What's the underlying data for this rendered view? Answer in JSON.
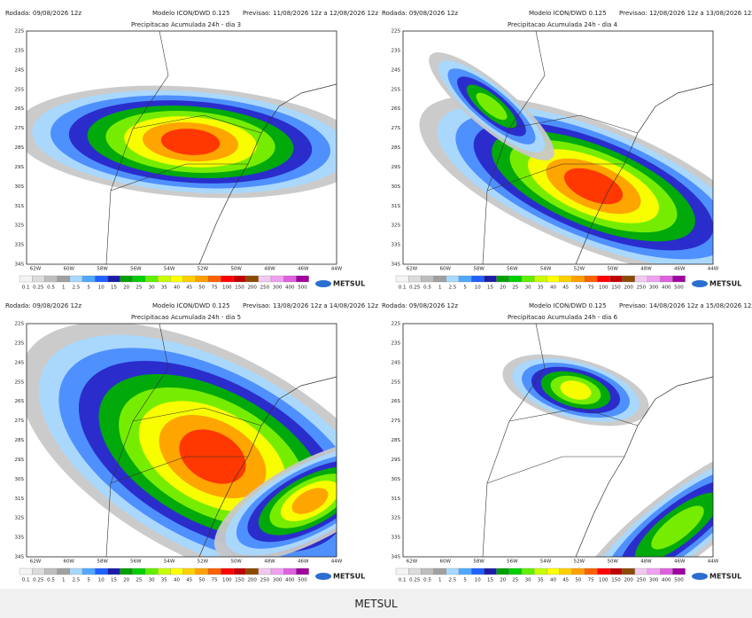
{
  "panels": [
    {
      "rodada": "Rodada: 09/08/2026 12z",
      "modelo": "Modelo ICON/DWD 0.125",
      "previsao": "Previsao: 11/08/2026 12z a 12/08/2026 12z",
      "subtitle": "Precipitacao Acumulada 24h - dia 3"
    },
    {
      "rodada": "Rodada: 09/08/2026 12z",
      "modelo": "Modelo ICON/DWD 0.125",
      "previsao": "Previsao: 12/08/2026 12z a 13/08/2026 12z",
      "subtitle": "Precipitacao Acumulada 24h - dia 4"
    },
    {
      "rodada": "Rodada: 09/08/2026 12z",
      "modelo": "Modelo ICON/DWD 0.125",
      "previsao": "Previsao: 13/08/2026 12z a 14/08/2026 12z",
      "subtitle": "Precipitacao Acumulada 24h - dia 5"
    },
    {
      "rodada": "Rodada: 09/08/2026 12z",
      "modelo": "Modelo ICON/DWD 0.125",
      "previsao": "Previsao: 14/08/2026 12z a 15/08/2026 12z",
      "subtitle": "Precipitacao Acumulada 24h - dia 6"
    }
  ],
  "axes": {
    "lat_labels": [
      "22S",
      "23S",
      "24S",
      "25S",
      "26S",
      "27S",
      "28S",
      "29S",
      "30S",
      "31S",
      "32S",
      "33S",
      "34S"
    ],
    "lon_labels": [
      "62W",
      "60W",
      "58W",
      "56W",
      "54W",
      "52W",
      "50W",
      "48W",
      "46W",
      "44W"
    ]
  },
  "colorbar": {
    "labels": [
      "0.1",
      "0.25",
      "0.5",
      "1",
      "2.5",
      "5",
      "10",
      "15",
      "20",
      "25",
      "30",
      "35",
      "40",
      "45",
      "50",
      "75",
      "100",
      "150",
      "200",
      "250",
      "300",
      "400",
      "500"
    ],
    "colors": [
      "#f4f4f4",
      "#dcdcdc",
      "#bebebe",
      "#a0a0a0",
      "#a8d8ff",
      "#50a8ff",
      "#2060ff",
      "#1c1ca8",
      "#00a000",
      "#00d000",
      "#60f000",
      "#c8ff00",
      "#ffff00",
      "#ffd000",
      "#ffa000",
      "#ff6000",
      "#ff0000",
      "#c00000",
      "#8c4a00",
      "#f0c8f0",
      "#f0a0f0",
      "#e060e0",
      "#a000a0"
    ]
  },
  "logo": {
    "text": "METSUL"
  },
  "footer": {
    "caption": "METSUL"
  }
}
